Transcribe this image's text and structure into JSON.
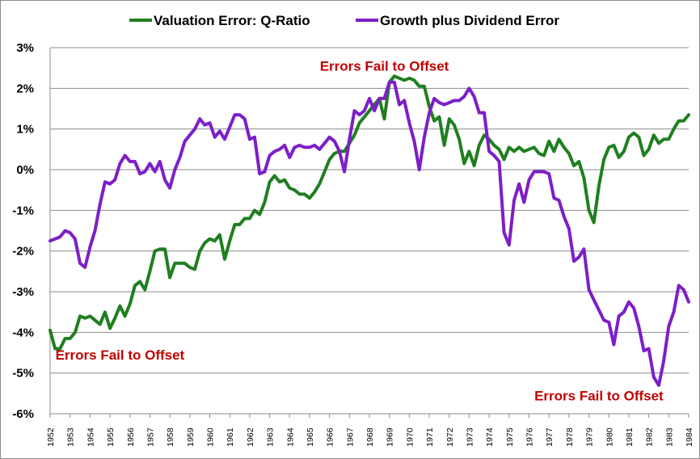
{
  "chart_data": {
    "type": "line",
    "title": "",
    "xlabel": "",
    "ylabel": "",
    "ylim": [
      -6,
      3
    ],
    "xlim": [
      1952,
      1984
    ],
    "y_ticks": [
      "3%",
      "2%",
      "1%",
      "0%",
      "-1%",
      "-2%",
      "-3%",
      "-4%",
      "-5%",
      "-6%"
    ],
    "x_ticks": [
      "1952",
      "1953",
      "1954",
      "1955",
      "1956",
      "1957",
      "1958",
      "1959",
      "1960",
      "1961",
      "1962",
      "1963",
      "1964",
      "1965",
      "1966",
      "1967",
      "1968",
      "1969",
      "1970",
      "1971",
      "1972",
      "1973",
      "1974",
      "1975",
      "1976",
      "1977",
      "1978",
      "1979",
      "1980",
      "1981",
      "1982",
      "1983",
      "1984"
    ],
    "grid": "horizontal",
    "legend": "top",
    "series": [
      {
        "name": "Valuation Error: Q-Ratio",
        "color": "#1f7f1f",
        "points": [
          [
            1952.0,
            -3.95
          ],
          [
            1952.25,
            -4.4
          ],
          [
            1952.5,
            -4.4
          ],
          [
            1952.75,
            -4.15
          ],
          [
            1953.0,
            -4.15
          ],
          [
            1953.25,
            -4.0
          ],
          [
            1953.5,
            -3.6
          ],
          [
            1953.75,
            -3.65
          ],
          [
            1954.0,
            -3.6
          ],
          [
            1954.25,
            -3.7
          ],
          [
            1954.5,
            -3.8
          ],
          [
            1954.75,
            -3.5
          ],
          [
            1955.0,
            -3.9
          ],
          [
            1955.25,
            -3.65
          ],
          [
            1955.5,
            -3.35
          ],
          [
            1955.75,
            -3.6
          ],
          [
            1956.0,
            -3.3
          ],
          [
            1956.25,
            -2.85
          ],
          [
            1956.5,
            -2.75
          ],
          [
            1956.75,
            -2.95
          ],
          [
            1957.0,
            -2.5
          ],
          [
            1957.25,
            -2.0
          ],
          [
            1957.5,
            -1.95
          ],
          [
            1957.75,
            -1.95
          ],
          [
            1958.0,
            -2.65
          ],
          [
            1958.25,
            -2.3
          ],
          [
            1958.5,
            -2.3
          ],
          [
            1958.75,
            -2.3
          ],
          [
            1959.0,
            -2.4
          ],
          [
            1959.25,
            -2.45
          ],
          [
            1959.5,
            -2.0
          ],
          [
            1959.75,
            -1.8
          ],
          [
            1960.0,
            -1.7
          ],
          [
            1960.25,
            -1.75
          ],
          [
            1960.5,
            -1.6
          ],
          [
            1960.75,
            -2.2
          ],
          [
            1961.0,
            -1.75
          ],
          [
            1961.25,
            -1.35
          ],
          [
            1961.5,
            -1.35
          ],
          [
            1961.75,
            -1.2
          ],
          [
            1962.0,
            -1.2
          ],
          [
            1962.25,
            -1.0
          ],
          [
            1962.5,
            -1.1
          ],
          [
            1962.75,
            -0.8
          ],
          [
            1963.0,
            -0.3
          ],
          [
            1963.25,
            -0.15
          ],
          [
            1963.5,
            -0.3
          ],
          [
            1963.75,
            -0.25
          ],
          [
            1964.0,
            -0.45
          ],
          [
            1964.25,
            -0.5
          ],
          [
            1964.5,
            -0.6
          ],
          [
            1964.75,
            -0.6
          ],
          [
            1965.0,
            -0.7
          ],
          [
            1965.25,
            -0.55
          ],
          [
            1965.5,
            -0.35
          ],
          [
            1965.75,
            -0.05
          ],
          [
            1966.0,
            0.25
          ],
          [
            1966.25,
            0.4
          ],
          [
            1966.5,
            0.45
          ],
          [
            1966.75,
            0.45
          ],
          [
            1967.0,
            0.65
          ],
          [
            1967.25,
            0.85
          ],
          [
            1967.5,
            1.15
          ],
          [
            1967.75,
            1.3
          ],
          [
            1968.0,
            1.45
          ],
          [
            1968.25,
            1.6
          ],
          [
            1968.5,
            1.75
          ],
          [
            1968.75,
            1.25
          ],
          [
            1969.0,
            2.15
          ],
          [
            1969.25,
            2.3
          ],
          [
            1969.5,
            2.25
          ],
          [
            1969.75,
            2.2
          ],
          [
            1970.0,
            2.25
          ],
          [
            1970.25,
            2.2
          ],
          [
            1970.5,
            2.05
          ],
          [
            1970.75,
            2.05
          ],
          [
            1971.0,
            1.55
          ],
          [
            1971.25,
            1.2
          ],
          [
            1971.5,
            1.3
          ],
          [
            1971.75,
            0.6
          ],
          [
            1972.0,
            1.25
          ],
          [
            1972.25,
            1.1
          ],
          [
            1972.5,
            0.75
          ],
          [
            1972.75,
            0.15
          ],
          [
            1973.0,
            0.45
          ],
          [
            1973.25,
            0.1
          ],
          [
            1973.5,
            0.6
          ],
          [
            1973.75,
            0.85
          ],
          [
            1974.0,
            0.75
          ],
          [
            1974.25,
            0.6
          ],
          [
            1974.5,
            0.5
          ],
          [
            1974.75,
            0.25
          ],
          [
            1975.0,
            0.55
          ],
          [
            1975.25,
            0.45
          ],
          [
            1975.5,
            0.55
          ],
          [
            1975.75,
            0.45
          ],
          [
            1976.0,
            0.5
          ],
          [
            1976.25,
            0.55
          ],
          [
            1976.5,
            0.4
          ],
          [
            1976.75,
            0.35
          ],
          [
            1977.0,
            0.7
          ],
          [
            1977.25,
            0.45
          ],
          [
            1977.5,
            0.75
          ],
          [
            1977.75,
            0.55
          ],
          [
            1978.0,
            0.4
          ],
          [
            1978.25,
            0.1
          ],
          [
            1978.5,
            0.2
          ],
          [
            1978.75,
            -0.2
          ],
          [
            1979.0,
            -1.0
          ],
          [
            1979.25,
            -1.3
          ],
          [
            1979.5,
            -0.4
          ],
          [
            1979.75,
            0.25
          ],
          [
            1980.0,
            0.55
          ],
          [
            1980.25,
            0.6
          ],
          [
            1980.5,
            0.3
          ],
          [
            1980.75,
            0.45
          ],
          [
            1981.0,
            0.8
          ],
          [
            1981.25,
            0.9
          ],
          [
            1981.5,
            0.8
          ],
          [
            1981.75,
            0.35
          ],
          [
            1982.0,
            0.5
          ],
          [
            1982.25,
            0.85
          ],
          [
            1982.5,
            0.65
          ],
          [
            1982.75,
            0.75
          ],
          [
            1983.0,
            0.75
          ],
          [
            1983.25,
            1.0
          ],
          [
            1983.5,
            1.2
          ],
          [
            1983.75,
            1.2
          ],
          [
            1984.0,
            1.35
          ]
        ]
      },
      {
        "name": "Growth plus Dividend Error",
        "color": "#7d1fc8",
        "points": [
          [
            1952.0,
            -1.75
          ],
          [
            1952.25,
            -1.7
          ],
          [
            1952.5,
            -1.65
          ],
          [
            1952.75,
            -1.5
          ],
          [
            1953.0,
            -1.55
          ],
          [
            1953.25,
            -1.7
          ],
          [
            1953.5,
            -2.3
          ],
          [
            1953.75,
            -2.4
          ],
          [
            1954.0,
            -1.9
          ],
          [
            1954.25,
            -1.5
          ],
          [
            1954.5,
            -0.85
          ],
          [
            1954.75,
            -0.3
          ],
          [
            1955.0,
            -0.35
          ],
          [
            1955.25,
            -0.25
          ],
          [
            1955.5,
            0.15
          ],
          [
            1955.75,
            0.35
          ],
          [
            1956.0,
            0.2
          ],
          [
            1956.25,
            0.2
          ],
          [
            1956.5,
            -0.1
          ],
          [
            1956.75,
            -0.05
          ],
          [
            1957.0,
            0.15
          ],
          [
            1957.25,
            -0.05
          ],
          [
            1957.5,
            0.2
          ],
          [
            1957.75,
            -0.25
          ],
          [
            1958.0,
            -0.45
          ],
          [
            1958.25,
            0.0
          ],
          [
            1958.5,
            0.3
          ],
          [
            1958.75,
            0.7
          ],
          [
            1959.0,
            0.85
          ],
          [
            1959.25,
            1.0
          ],
          [
            1959.5,
            1.25
          ],
          [
            1959.75,
            1.1
          ],
          [
            1960.0,
            1.15
          ],
          [
            1960.25,
            0.8
          ],
          [
            1960.5,
            0.95
          ],
          [
            1960.75,
            0.75
          ],
          [
            1961.0,
            1.05
          ],
          [
            1961.25,
            1.35
          ],
          [
            1961.5,
            1.35
          ],
          [
            1961.75,
            1.25
          ],
          [
            1962.0,
            0.75
          ],
          [
            1962.25,
            0.8
          ],
          [
            1962.5,
            -0.1
          ],
          [
            1962.75,
            -0.05
          ],
          [
            1963.0,
            0.35
          ],
          [
            1963.25,
            0.45
          ],
          [
            1963.5,
            0.5
          ],
          [
            1963.75,
            0.6
          ],
          [
            1964.0,
            0.3
          ],
          [
            1964.25,
            0.55
          ],
          [
            1964.5,
            0.6
          ],
          [
            1964.75,
            0.55
          ],
          [
            1965.0,
            0.55
          ],
          [
            1965.25,
            0.6
          ],
          [
            1965.5,
            0.5
          ],
          [
            1965.75,
            0.65
          ],
          [
            1966.0,
            0.8
          ],
          [
            1966.25,
            0.7
          ],
          [
            1966.5,
            0.45
          ],
          [
            1966.75,
            -0.05
          ],
          [
            1967.0,
            0.75
          ],
          [
            1967.25,
            1.45
          ],
          [
            1967.5,
            1.35
          ],
          [
            1967.75,
            1.45
          ],
          [
            1968.0,
            1.75
          ],
          [
            1968.25,
            1.45
          ],
          [
            1968.5,
            1.75
          ],
          [
            1968.75,
            1.75
          ],
          [
            1969.0,
            2.15
          ],
          [
            1969.25,
            2.15
          ],
          [
            1969.5,
            1.6
          ],
          [
            1969.75,
            1.7
          ],
          [
            1970.0,
            1.15
          ],
          [
            1970.25,
            0.7
          ],
          [
            1970.5,
            0.0
          ],
          [
            1970.75,
            0.8
          ],
          [
            1971.0,
            1.4
          ],
          [
            1971.25,
            1.75
          ],
          [
            1971.5,
            1.65
          ],
          [
            1971.75,
            1.6
          ],
          [
            1972.0,
            1.65
          ],
          [
            1972.25,
            1.7
          ],
          [
            1972.5,
            1.7
          ],
          [
            1972.75,
            1.8
          ],
          [
            1973.0,
            2.0
          ],
          [
            1973.25,
            1.8
          ],
          [
            1973.5,
            1.4
          ],
          [
            1973.75,
            1.4
          ],
          [
            1974.0,
            0.45
          ],
          [
            1974.25,
            0.35
          ],
          [
            1974.5,
            0.2
          ],
          [
            1974.75,
            -1.55
          ],
          [
            1975.0,
            -1.85
          ],
          [
            1975.25,
            -0.75
          ],
          [
            1975.5,
            -0.35
          ],
          [
            1975.75,
            -0.8
          ],
          [
            1976.0,
            -0.25
          ],
          [
            1976.25,
            -0.05
          ],
          [
            1976.5,
            -0.05
          ],
          [
            1976.75,
            -0.05
          ],
          [
            1977.0,
            -0.1
          ],
          [
            1977.25,
            -0.7
          ],
          [
            1977.5,
            -0.75
          ],
          [
            1977.75,
            -1.15
          ],
          [
            1978.0,
            -1.45
          ],
          [
            1978.25,
            -2.25
          ],
          [
            1978.5,
            -2.15
          ],
          [
            1978.75,
            -1.95
          ],
          [
            1979.0,
            -2.95
          ],
          [
            1979.25,
            -3.2
          ],
          [
            1979.5,
            -3.45
          ],
          [
            1979.75,
            -3.7
          ],
          [
            1980.0,
            -3.75
          ],
          [
            1980.25,
            -4.3
          ],
          [
            1980.5,
            -3.6
          ],
          [
            1980.75,
            -3.5
          ],
          [
            1981.0,
            -3.25
          ],
          [
            1981.25,
            -3.4
          ],
          [
            1981.5,
            -3.85
          ],
          [
            1981.75,
            -4.45
          ],
          [
            1982.0,
            -4.4
          ],
          [
            1982.25,
            -5.1
          ],
          [
            1982.5,
            -5.3
          ],
          [
            1982.75,
            -4.7
          ],
          [
            1983.0,
            -3.85
          ],
          [
            1983.25,
            -3.5
          ],
          [
            1983.5,
            -2.85
          ],
          [
            1983.75,
            -2.95
          ],
          [
            1984.0,
            -3.25
          ]
        ]
      }
    ],
    "annotations": [
      {
        "text": "Errors Fail to Offset",
        "x": 1968.75,
        "y": 2.55
      },
      {
        "text": "Errors Fail to Offset",
        "x": 1955.5,
        "y": -4.55
      },
      {
        "text": "Errors Fail to Offset",
        "x": 1979.5,
        "y": -5.55
      }
    ]
  }
}
